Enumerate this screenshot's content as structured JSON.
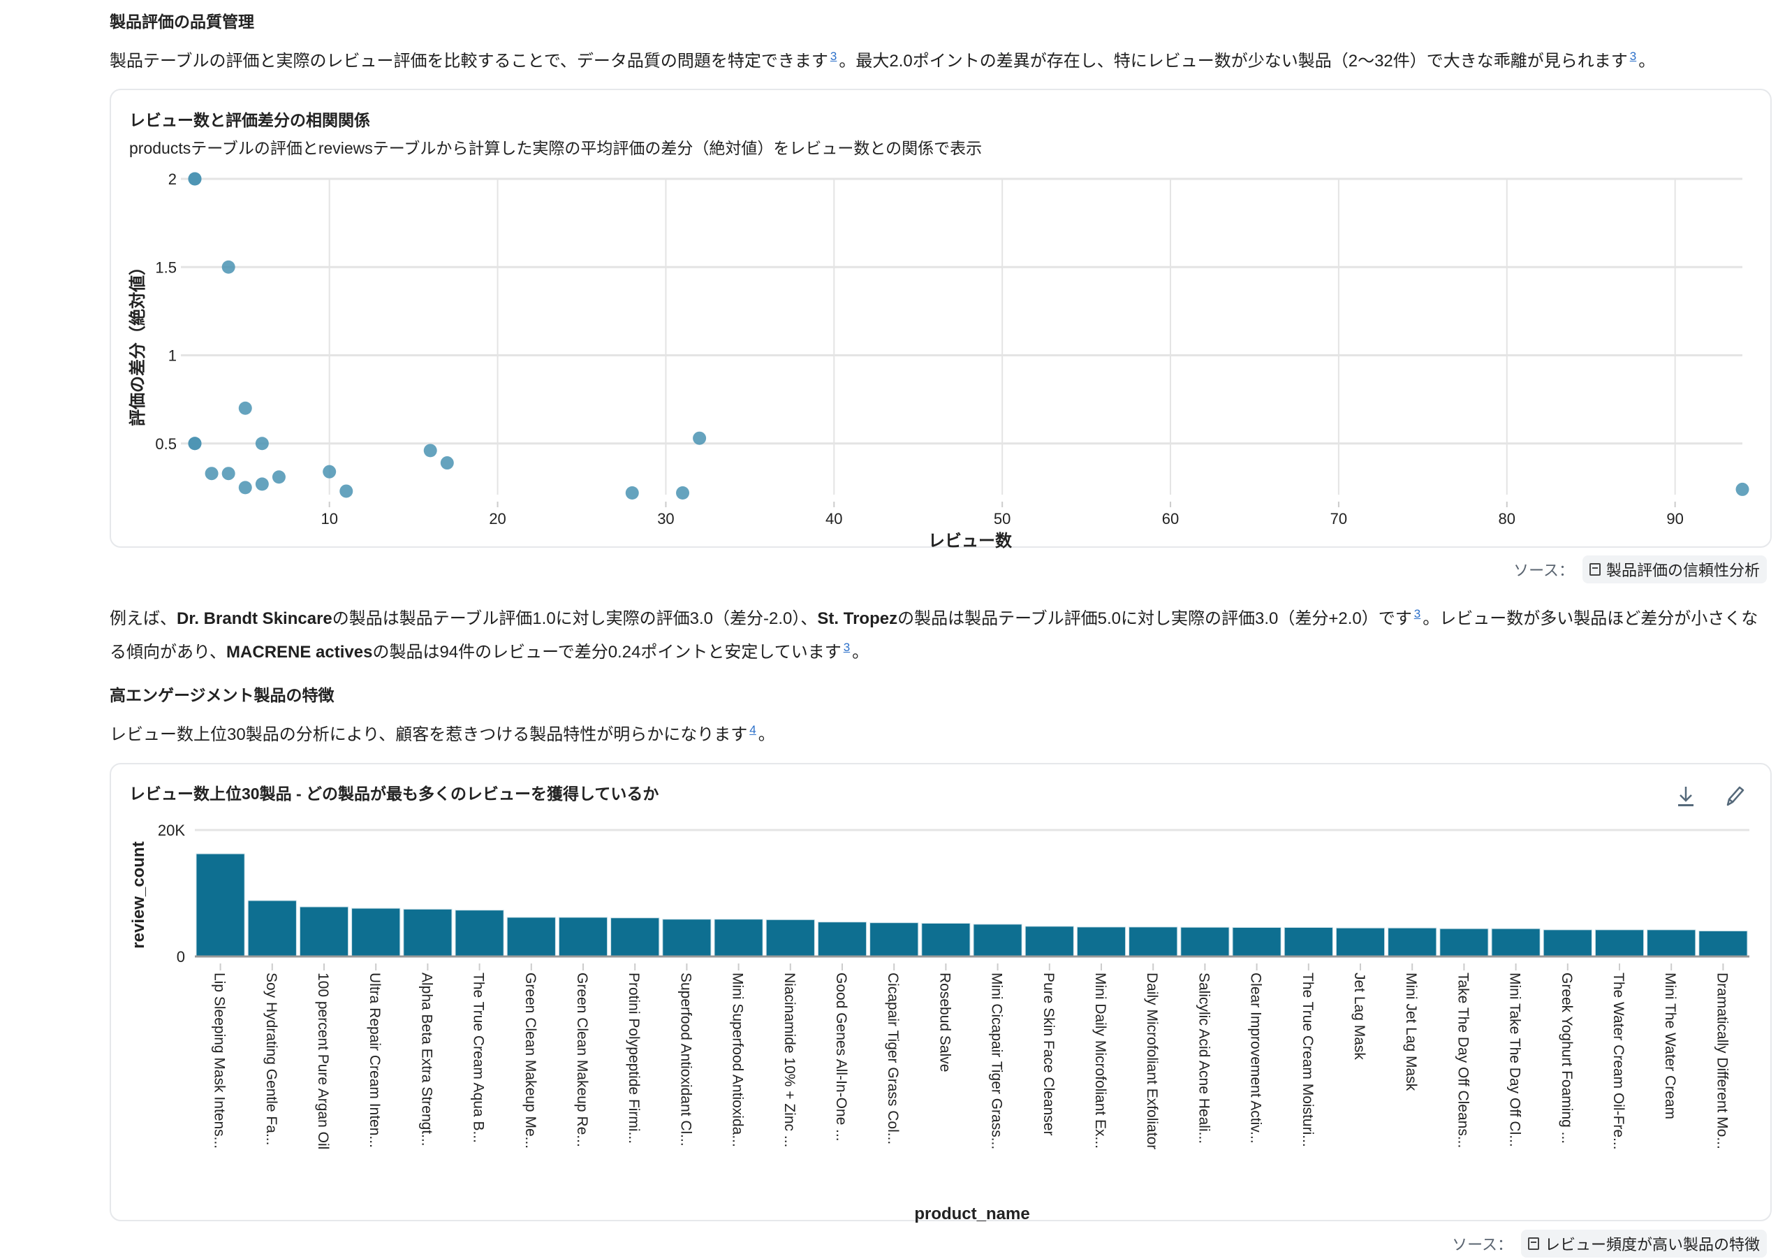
{
  "section1": {
    "heading": "製品評価の品質管理",
    "paragraph": [
      {
        "t": "製品テーブルの評価と実際のレビュー評価を比較することで、データ品質の問題を特定できます"
      },
      {
        "cite": "3"
      },
      {
        "t": "。最大2.0ポイントの差異が存在し、特にレビュー数が少ない製品（2〜32件）で大きな乖離が見られます"
      },
      {
        "cite": "3"
      },
      {
        "t": "。"
      }
    ]
  },
  "scatter_card": {
    "title": "レビュー数と評価差分の相関関係",
    "subtitle": "productsテーブルの評価とreviewsテーブルから計算した実際の平均評価の差分（絶対値）をレビュー数との関係で表示",
    "source_label": "ソース：",
    "source_name": "製品評価の信頼性分析"
  },
  "section1_detail": [
    {
      "t": "例えば、"
    },
    {
      "t": "Dr. Brandt Skincare",
      "b": true
    },
    {
      "t": "の製品は製品テーブル評価1.0に対し実際の評価3.0（差分-2.0）、"
    },
    {
      "t": "St. Tropez",
      "b": true
    },
    {
      "t": "の製品は製品テーブル評価5.0に対し実際の評価3.0（差分+2.0）です"
    },
    {
      "cite": "3"
    },
    {
      "t": "。レビュー数が多い製品ほど差分が小さくなる傾向があり、"
    },
    {
      "t": "MACRENE actives",
      "b": true
    },
    {
      "t": "の製品は94件のレビューで差分0.24ポイントと安定しています"
    },
    {
      "cite": "3"
    },
    {
      "t": "。"
    }
  ],
  "section2": {
    "heading": "高エンゲージメント製品の特徴",
    "paragraph": [
      {
        "t": "レビュー数上位30製品の分析により、顧客を惹きつける製品特性が明らかになります"
      },
      {
        "cite": "4"
      },
      {
        "t": "。"
      }
    ]
  },
  "bar_card": {
    "title": "レビュー数上位30製品 - どの製品が最も多くのレビューを獲得しているか",
    "download_icon": "download-icon",
    "edit_icon": "pencil-icon",
    "source_label": "ソース：",
    "source_name": "レビュー頻度が高い製品の特徴"
  },
  "chart_data": [
    {
      "type": "scatter",
      "xlabel": "レビュー数",
      "ylabel": "評価の差分（絶対値）",
      "xlim": [
        2,
        94
      ],
      "ylim": [
        0.21,
        2
      ],
      "xticks": [
        10,
        20,
        30,
        40,
        50,
        60,
        70,
        80,
        90
      ],
      "yticks": [
        0.5,
        1,
        1.5,
        2
      ],
      "ytick_labels": [
        "0.5",
        "1",
        "1.5",
        "2"
      ],
      "grid": true,
      "color": "#4a93b3",
      "points": [
        {
          "x": 2,
          "y": 2.0
        },
        {
          "x": 2,
          "y": 2.0
        },
        {
          "x": 4,
          "y": 1.5
        },
        {
          "x": 5,
          "y": 0.7
        },
        {
          "x": 2,
          "y": 0.5
        },
        {
          "x": 2,
          "y": 0.5
        },
        {
          "x": 6,
          "y": 0.5
        },
        {
          "x": 3,
          "y": 0.33
        },
        {
          "x": 4,
          "y": 0.33
        },
        {
          "x": 5,
          "y": 0.25
        },
        {
          "x": 6,
          "y": 0.27
        },
        {
          "x": 7,
          "y": 0.31
        },
        {
          "x": 10,
          "y": 0.34
        },
        {
          "x": 11,
          "y": 0.23
        },
        {
          "x": 16,
          "y": 0.46
        },
        {
          "x": 17,
          "y": 0.39
        },
        {
          "x": 28,
          "y": 0.22
        },
        {
          "x": 31,
          "y": 0.22
        },
        {
          "x": 32,
          "y": 0.53
        },
        {
          "x": 94,
          "y": 0.24
        }
      ]
    },
    {
      "type": "bar",
      "xlabel": "product_name",
      "ylabel": "review_count",
      "ylim": [
        0,
        20000
      ],
      "yticks": [
        0,
        20000
      ],
      "ytick_labels": [
        "0",
        "20K"
      ],
      "grid": true,
      "color": "#0e6f91",
      "categories": [
        "Lip Sleeping Mask Intens...",
        "Soy Hydrating Gentle Fa...",
        "100 percent Pure Argan Oil",
        "Ultra Repair Cream Inten...",
        "Alpha Beta Extra Strengt...",
        "The True Cream Aqua B...",
        "Green Clean Makeup Me...",
        "Green Clean Makeup Re...",
        "Protini Polypeptide Firmi...",
        "Superfood Antioxidant Cl...",
        "Mini Superfood Antioxida...",
        "Niacinamide 10% + Zinc ...",
        "Good Genes All-In-One ...",
        "Cicapair Tiger Grass Col...",
        "Rosebud Salve",
        "Mini Cicapair Tiger Grass...",
        "Pure Skin Face Cleanser",
        "Mini Daily Microfoliant Ex...",
        "Daily Microfoliant Exfoliator",
        "Salicylic Acid Acne Heali...",
        "Clear Improvement Activ...",
        "The True Cream Moisturi...",
        "Jet Lag Mask",
        "Mini Jet Lag Mask",
        "Take The Day Off Cleans...",
        "Mini Take The Day Off Cl...",
        "Greek Yoghurt Foaming ...",
        "The Water Cream Oil-Fre...",
        "Mini The Water Cream",
        "Dramatically Different Mo..."
      ],
      "values": [
        16240,
        8840,
        7850,
        7620,
        7480,
        7330,
        6190,
        6190,
        6110,
        5890,
        5890,
        5820,
        5450,
        5340,
        5250,
        5100,
        4770,
        4660,
        4660,
        4620,
        4590,
        4590,
        4510,
        4510,
        4400,
        4400,
        4220,
        4220,
        4220,
        4040
      ]
    }
  ]
}
